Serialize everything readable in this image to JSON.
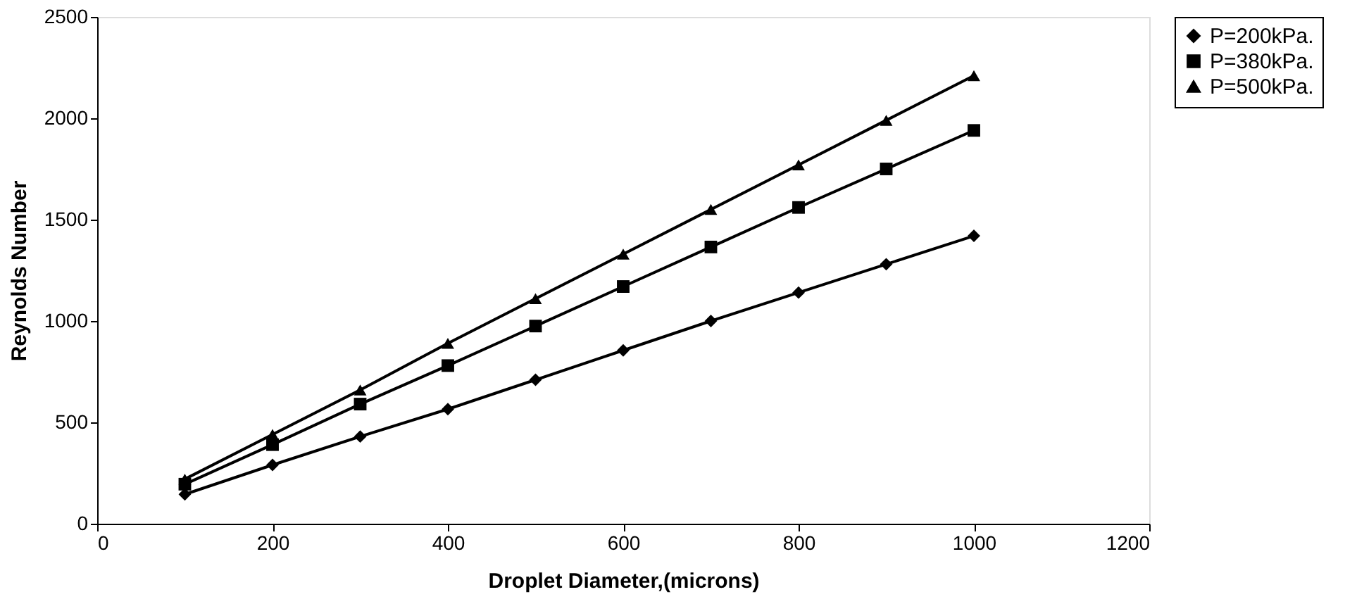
{
  "chart_data": {
    "type": "line",
    "xlabel": "Droplet Diameter,(microns)",
    "ylabel": "Reynolds Number",
    "x": [
      100,
      200,
      300,
      400,
      500,
      600,
      700,
      800,
      900,
      1000
    ],
    "series": [
      {
        "name": "P=200kPa.",
        "color": "#000000",
        "marker": "diamond",
        "values": [
          145,
          290,
          430,
          565,
          710,
          855,
          1000,
          1140,
          1280,
          1420
        ]
      },
      {
        "name": "P=380kPa.",
        "color": "#000000",
        "marker": "square",
        "values": [
          195,
          390,
          590,
          780,
          975,
          1170,
          1365,
          1560,
          1750,
          1940
        ]
      },
      {
        "name": "P=500kPa.",
        "color": "#000000",
        "marker": "triangle",
        "values": [
          220,
          440,
          660,
          890,
          1110,
          1330,
          1550,
          1770,
          1990,
          2210
        ]
      }
    ],
    "xlim": [
      0,
      1200
    ],
    "xticks": [
      0,
      200,
      400,
      600,
      800,
      1000,
      1200
    ],
    "ylim": [
      0,
      2500
    ],
    "yticks": [
      0,
      500,
      1000,
      1500,
      2000,
      2500
    ],
    "grid": false,
    "legend": "right",
    "line_style": "solid"
  }
}
